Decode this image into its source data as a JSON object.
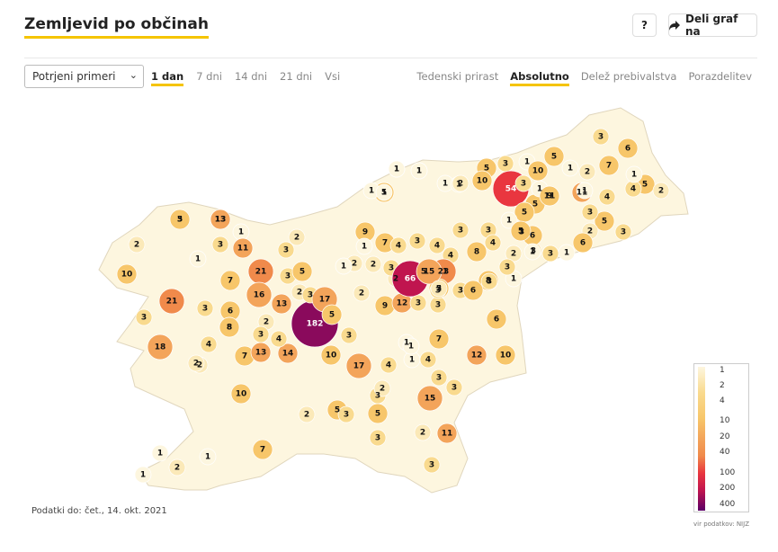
{
  "header": {
    "title": "Zemljevid po občinah",
    "help_label": "?",
    "share_label": "Deli graf na"
  },
  "controls": {
    "select_value": "Potrjeni primeri",
    "period_tabs": [
      {
        "label": "1 dan",
        "active": true
      },
      {
        "label": "7 dni",
        "active": false
      },
      {
        "label": "14 dni",
        "active": false
      },
      {
        "label": "21 dni",
        "active": false
      },
      {
        "label": "Vsi",
        "active": false
      }
    ],
    "mode_tabs": [
      {
        "label": "Tedenski prirast",
        "active": false
      },
      {
        "label": "Absolutno",
        "active": true
      },
      {
        "label": "Delež prebivalstva",
        "active": false
      },
      {
        "label": "Porazdelitev",
        "active": false
      }
    ]
  },
  "colors": {
    "accent": "#f5c400"
  },
  "legend": {
    "labels": [
      "1",
      "2",
      "4",
      "10",
      "20",
      "40",
      "100",
      "200",
      "400"
    ],
    "stops": [
      "#fdf6df",
      "#fbe9b8",
      "#f9da8e",
      "#f7c66a",
      "#f3a45a",
      "#f08a4b",
      "#e9363f",
      "#c0154f",
      "#8a0a5c",
      "#5b0066"
    ]
  },
  "map_values": [
    "3",
    "2",
    "13",
    "1",
    "3",
    "2",
    "11",
    "1",
    "10",
    "21",
    "7",
    "16",
    "13",
    "3",
    "5",
    "2",
    "3",
    "21",
    "3",
    "6",
    "8",
    "3",
    "18",
    "4",
    "2",
    "7",
    "13",
    "14",
    "2",
    "3",
    "4",
    "10",
    "17",
    "182",
    "3",
    "10",
    "17",
    "5",
    "9",
    "12",
    "3",
    "2",
    "8",
    "1",
    "1",
    "3",
    "2",
    "5",
    "7",
    "9",
    "7",
    "3",
    "4",
    "4",
    "3",
    "3",
    "5",
    "8",
    "5",
    "1",
    "1",
    "1",
    "1",
    "1",
    "23",
    "5",
    "3",
    "6",
    "8",
    "4",
    "3",
    "3",
    "3",
    "13",
    "2",
    "5",
    "3",
    "2",
    "7",
    "1",
    "2",
    "2",
    "2",
    "4",
    "6",
    "1",
    "6",
    "12",
    "10",
    "3",
    "3",
    "4",
    "1",
    "4",
    "15",
    "3",
    "3",
    "2",
    "11",
    "3",
    "5",
    "3",
    "1",
    "10",
    "5",
    "1",
    "2",
    "7",
    "4",
    "5",
    "3",
    "3",
    "6",
    "11",
    "54",
    "3",
    "5",
    "5",
    "11",
    "3",
    "2",
    "6",
    "1",
    "5",
    "4",
    "1",
    "2",
    "1",
    "1",
    "3",
    "10",
    "1",
    "1",
    "2",
    "3",
    "5",
    "9",
    "1",
    "3",
    "3",
    "66",
    "15",
    "2",
    "1",
    "1",
    "1",
    "2",
    "1",
    "1",
    "1",
    "1",
    "3",
    "2",
    "5"
  ],
  "footer": {
    "data_date": "Podatki do: čet., 14. okt. 2021",
    "source": "vir podatkov: NIJZ"
  }
}
